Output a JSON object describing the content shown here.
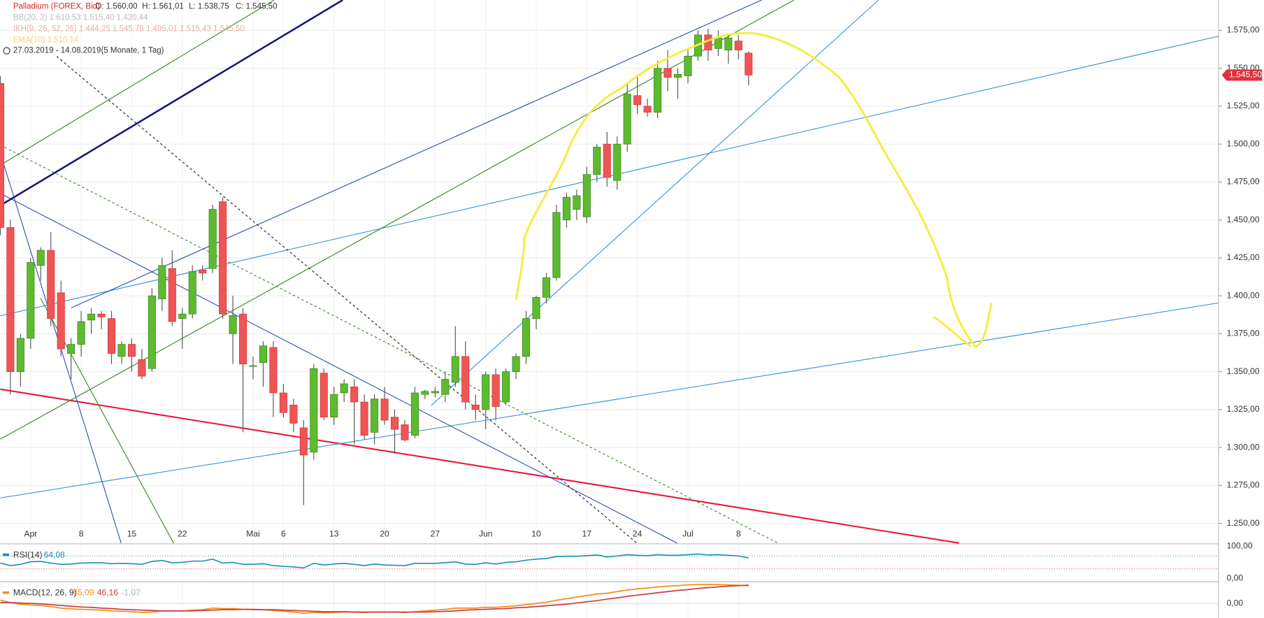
{
  "chart_data": {
    "type": "candlestick",
    "header": {
      "title": "Palladium (FOREX, Bid)",
      "ohlc": [
        "O: 1.560,00",
        "H: 1.561,01",
        "L: 1.538,75",
        "C: 1.545,50"
      ],
      "indicators": [
        "BB(20, 2)  1.610,53  1.515,40  1.420,44",
        "IKH(9, 26, 52, 26)  1.444,25  1.545,78  1.495,01  1.515,43  1.545,50",
        "EMA(10)  1.510,14"
      ],
      "range": "27.03.2019 - 14.08.2019",
      "period": "(5 Monate, 1 Tag)"
    },
    "categories": [
      null,
      null,
      null,
      "Apr",
      null,
      null,
      null,
      null,
      "8",
      null,
      null,
      null,
      null,
      "15",
      null,
      null,
      null,
      null,
      "22",
      null,
      null,
      null,
      null,
      null,
      null,
      "Mai",
      null,
      null,
      "6",
      null,
      null,
      null,
      null,
      "13",
      null,
      null,
      null,
      null,
      "20",
      null,
      null,
      null,
      null,
      "27",
      null,
      null,
      null,
      null,
      "Jun",
      null,
      null,
      null,
      null,
      "10",
      null,
      null,
      null,
      null,
      "17",
      null,
      null,
      null,
      null,
      "24",
      null,
      null,
      null,
      null,
      "Jul",
      null,
      null,
      null,
      null,
      "8",
      null
    ],
    "open": [
      1540,
      1445,
      1350,
      1372,
      1420,
      1430,
      1402,
      1362,
      1368,
      1384,
      1388,
      1385,
      1360,
      1368,
      1358,
      1352,
      1398,
      1418,
      1385,
      1388,
      1417,
      1418,
      1462,
      1375,
      1388,
      1354,
      1356,
      1366,
      1336,
      1328,
      1313,
      1297,
      1349,
      1320,
      1336,
      1340,
      1330,
      1310,
      1332,
      1320,
      1315,
      1308,
      1335,
      1336,
      1335,
      1343,
      1360,
      1328,
      1325,
      1348,
      1330,
      1350,
      1360,
      1385,
      1399,
      1412,
      1450,
      1457,
      1452,
      1480,
      1500,
      1476,
      1500,
      1532,
      1525,
      1521,
      1550,
      1544,
      1545,
      1558,
      1572,
      1563,
      1562,
      1568,
      1560
    ],
    "high": [
      1545,
      1450,
      1375,
      1425,
      1432,
      1442,
      1410,
      1372,
      1390,
      1392,
      1390,
      1390,
      1370,
      1372,
      1365,
      1405,
      1425,
      1430,
      1392,
      1420,
      1420,
      1460,
      1465,
      1400,
      1392,
      1360,
      1370,
      1370,
      1342,
      1332,
      1318,
      1355,
      1352,
      1340,
      1345,
      1345,
      1335,
      1335,
      1340,
      1325,
      1318,
      1340,
      1338,
      1340,
      1350,
      1380,
      1370,
      1335,
      1350,
      1352,
      1352,
      1362,
      1390,
      1400,
      1415,
      1460,
      1468,
      1470,
      1485,
      1500,
      1508,
      1505,
      1540,
      1545,
      1530,
      1555,
      1562,
      1550,
      1562,
      1575,
      1576,
      1575,
      1572,
      1572,
      1561.01
    ],
    "low": [
      1440,
      1335,
      1340,
      1365,
      1410,
      1380,
      1360,
      1345,
      1360,
      1375,
      1378,
      1355,
      1355,
      1350,
      1345,
      1350,
      1390,
      1380,
      1365,
      1385,
      1410,
      1415,
      1385,
      1355,
      1310,
      1345,
      1340,
      1320,
      1320,
      1310,
      1262,
      1292,
      1318,
      1315,
      1330,
      1302,
      1305,
      1302,
      1315,
      1296,
      1304,
      1306,
      1332,
      1333,
      1330,
      1340,
      1325,
      1318,
      1312,
      1318,
      1328,
      1345,
      1355,
      1378,
      1395,
      1410,
      1445,
      1450,
      1448,
      1475,
      1472,
      1470,
      1495,
      1520,
      1518,
      1517,
      1535,
      1530,
      1540,
      1555,
      1555,
      1558,
      1553,
      1556,
      1538.75
    ],
    "close": [
      1445,
      1350,
      1372,
      1422,
      1430,
      1385,
      1365,
      1368,
      1383,
      1388,
      1386,
      1362,
      1368,
      1360,
      1347,
      1400,
      1420,
      1383,
      1388,
      1416,
      1415,
      1457,
      1388,
      1387,
      1355,
      1354,
      1367,
      1336,
      1323,
      1316,
      1295,
      1352,
      1320,
      1335,
      1342,
      1330,
      1308,
      1332,
      1318,
      1312,
      1305,
      1336,
      1337,
      1337,
      1345,
      1360,
      1330,
      1325,
      1348,
      1327,
      1350,
      1360,
      1385,
      1399,
      1412,
      1455,
      1465,
      1466,
      1480,
      1498,
      1478,
      1500,
      1533,
      1526,
      1521,
      1550,
      1544,
      1546,
      1558,
      1572,
      1562,
      1570,
      1570,
      1562,
      1545.5
    ],
    "up_color": "#5dbb2f",
    "down_color": "#f05555",
    "ylim": [
      1237,
      1595
    ],
    "yticks": [
      {
        "value": 1250,
        "label": "1.250,00"
      },
      {
        "value": 1275,
        "label": "1.275,00"
      },
      {
        "value": 1300,
        "label": "1.300,00"
      },
      {
        "value": 1325,
        "label": "1.325,00"
      },
      {
        "value": 1350,
        "label": "1.350,00"
      },
      {
        "value": 1375,
        "label": "1.375,00"
      },
      {
        "value": 1400,
        "label": "1.400,00"
      },
      {
        "value": 1425,
        "label": "1.425,00"
      },
      {
        "value": 1450,
        "label": "1.450,00"
      },
      {
        "value": 1475,
        "label": "1.475,00"
      },
      {
        "value": 1500,
        "label": "1.500,00"
      },
      {
        "value": 1525,
        "label": "1.525,00"
      },
      {
        "value": 1550,
        "label": "1.550,00"
      },
      {
        "value": 1575,
        "label": "1.575,00"
      }
    ],
    "grid": true,
    "price_marker": {
      "value": 1545.5,
      "label": "1.545,50"
    },
    "rsi": {
      "name": "RSI(14)",
      "value_label": "64,08",
      "color": "#1a8fb5",
      "ylim": [
        0,
        100
      ],
      "levels": [
        30,
        70
      ],
      "yticks": [
        {
          "value": 0,
          "label": "0,00"
        },
        {
          "value": 100,
          "label": "100,00"
        }
      ],
      "values": [
        48,
        40,
        44,
        52,
        53,
        48,
        44,
        45,
        48,
        49,
        49,
        46,
        47,
        46,
        44,
        53,
        56,
        49,
        50,
        54,
        54,
        60,
        48,
        50,
        44,
        44,
        46,
        40,
        38,
        36,
        33,
        47,
        42,
        45,
        47,
        44,
        40,
        45,
        42,
        41,
        40,
        47,
        47,
        47,
        49,
        52,
        45,
        44,
        49,
        45,
        50,
        52,
        57,
        60,
        62,
        68,
        69,
        69,
        71,
        73,
        67,
        70,
        74,
        72,
        71,
        74,
        72,
        72,
        74,
        76,
        73,
        74,
        72,
        70,
        64.08
      ]
    },
    "macd": {
      "name": "MACD(12, 26, 9)",
      "labels": [
        "45,09",
        "46,16",
        "-1,07"
      ],
      "macd_color": "#f0901a",
      "signal_color": "#c84040",
      "ylim": [
        -37,
        55
      ],
      "yticks": [
        {
          "value": 0,
          "label": "0,00"
        }
      ],
      "macd": [
        8,
        2,
        -2,
        -4,
        -5,
        -8,
        -12,
        -14,
        -15,
        -16,
        -17,
        -19,
        -20,
        -21,
        -23,
        -22,
        -19,
        -19,
        -19,
        -17,
        -16,
        -12,
        -13,
        -13,
        -15,
        -16,
        -16,
        -18,
        -20,
        -22,
        -25,
        -23,
        -24,
        -23,
        -22,
        -22,
        -23,
        -22,
        -22,
        -22,
        -23,
        -21,
        -19,
        -17,
        -15,
        -12,
        -12,
        -12,
        -10,
        -10,
        -8,
        -6,
        -3,
        0,
        3,
        8,
        12,
        16,
        20,
        24,
        26,
        30,
        34,
        37,
        39,
        42,
        44,
        45,
        47,
        48,
        48,
        48,
        47,
        46,
        45.09
      ],
      "signal": [
        2,
        2,
        1,
        0,
        -1,
        -3,
        -5,
        -7,
        -9,
        -10,
        -12,
        -13,
        -15,
        -16,
        -17,
        -18,
        -19,
        -19,
        -19,
        -19,
        -18,
        -17,
        -16,
        -16,
        -15,
        -15,
        -16,
        -16,
        -17,
        -18,
        -19,
        -20,
        -21,
        -21,
        -21,
        -22,
        -22,
        -22,
        -22,
        -22,
        -22,
        -22,
        -22,
        -21,
        -20,
        -19,
        -17,
        -16,
        -15,
        -14,
        -13,
        -11,
        -10,
        -8,
        -6,
        -4,
        -2,
        1,
        4,
        7,
        11,
        14,
        18,
        21,
        24,
        27,
        30,
        33,
        35,
        38,
        40,
        42,
        44,
        45,
        46.16
      ]
    }
  }
}
